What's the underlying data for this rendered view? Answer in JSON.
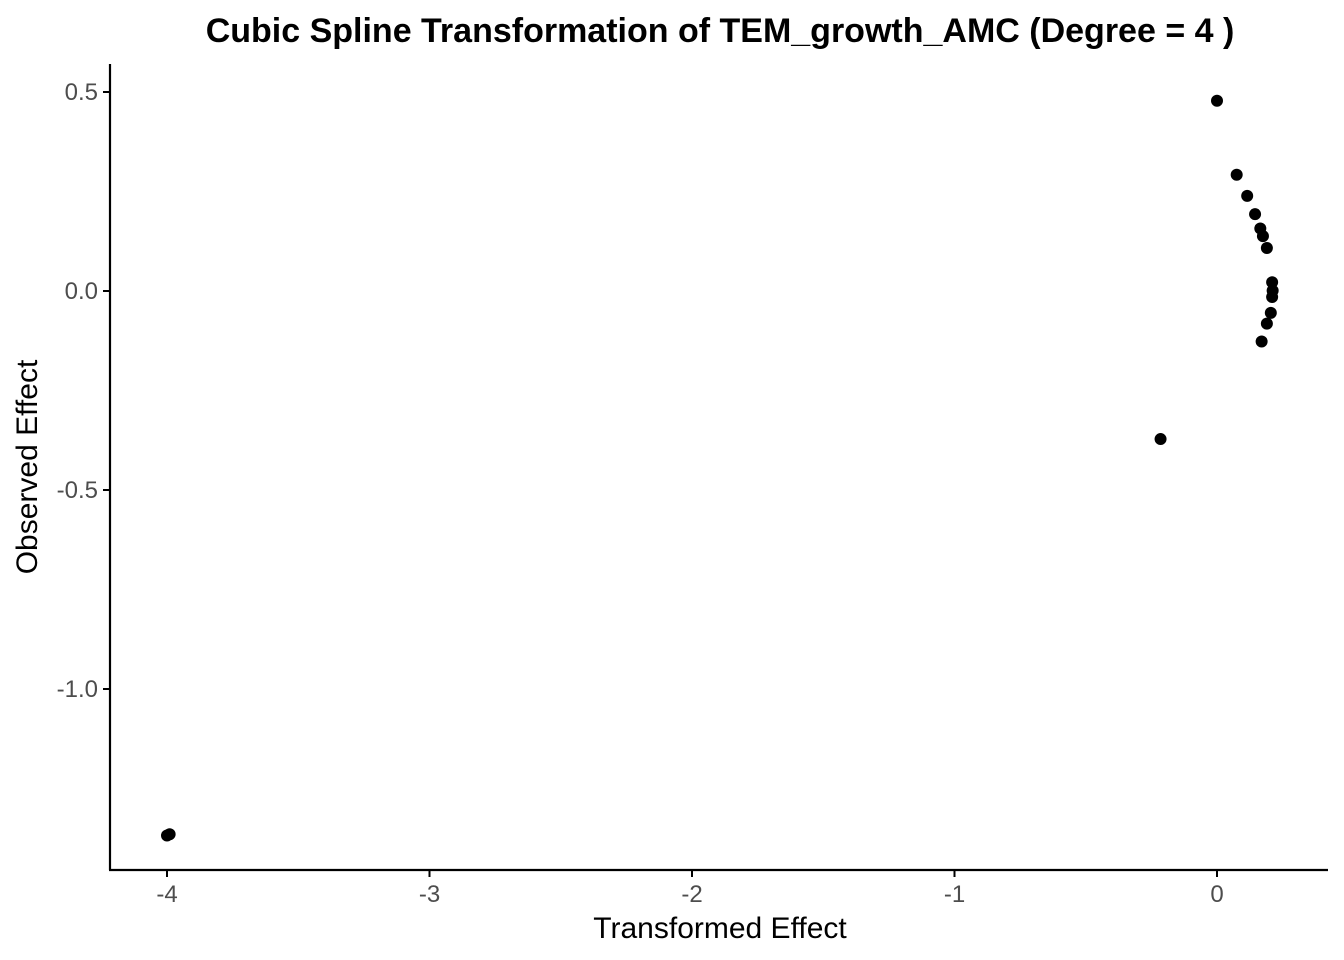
{
  "chart_data": {
    "type": "scatter",
    "title": "Cubic Spline Transformation of TEM_growth_AMC (Degree = 4 )",
    "xlabel": "Transformed Effect",
    "ylabel": "Observed Effect",
    "xlim": [
      -4.21,
      4.21
    ],
    "ylim": [
      -1.46,
      0.57
    ],
    "xticks": [
      -4,
      -3,
      -2,
      -1,
      0
    ],
    "xtick_labels": [
      "-4",
      "-3",
      "-2",
      "-1",
      "0"
    ],
    "yticks": [
      0.5,
      0.0,
      -0.5,
      -1.0
    ],
    "ytick_labels": [
      "0.5",
      "0.0",
      "-0.5",
      "-1.0"
    ],
    "grid": false,
    "legend": "none",
    "point_color": "#000000",
    "points": [
      {
        "x": -3.99,
        "y": -1.365
      },
      {
        "x": -4.0,
        "y": -1.368
      },
      {
        "x": -0.215,
        "y": -0.372
      },
      {
        "x": 0.0,
        "y": 0.478
      },
      {
        "x": 0.075,
        "y": 0.292
      },
      {
        "x": 0.115,
        "y": 0.239
      },
      {
        "x": 0.145,
        "y": 0.193
      },
      {
        "x": 0.165,
        "y": 0.157
      },
      {
        "x": 0.175,
        "y": 0.138
      },
      {
        "x": 0.19,
        "y": 0.108
      },
      {
        "x": 0.21,
        "y": 0.022
      },
      {
        "x": 0.212,
        "y": 0.001
      },
      {
        "x": 0.21,
        "y": -0.015
      },
      {
        "x": 0.205,
        "y": -0.055
      },
      {
        "x": 0.19,
        "y": -0.082
      },
      {
        "x": 0.17,
        "y": -0.127
      }
    ]
  }
}
